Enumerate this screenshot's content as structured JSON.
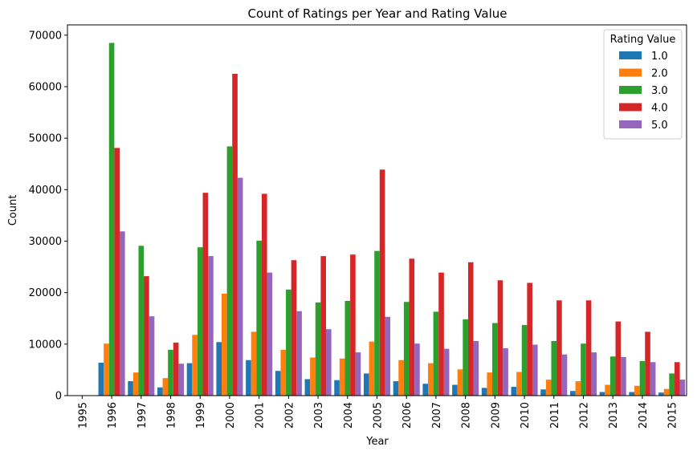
{
  "chart_data": {
    "type": "bar",
    "title": "Count of Ratings per Year and Rating Value",
    "xlabel": "Year",
    "ylabel": "Count",
    "ylim": [
      0,
      72000
    ],
    "yticks": [
      0,
      10000,
      20000,
      30000,
      40000,
      50000,
      60000,
      70000
    ],
    "grid": false,
    "legend": {
      "title": "Rating Value",
      "placement": "top-right"
    },
    "categories": [
      "1995",
      "1996",
      "1997",
      "1998",
      "1999",
      "2000",
      "2001",
      "2002",
      "2003",
      "2004",
      "2005",
      "2006",
      "2007",
      "2008",
      "2009",
      "2010",
      "2011",
      "2012",
      "2013",
      "2014",
      "2015"
    ],
    "series": [
      {
        "name": "1.0",
        "color": "#1f77b4",
        "values": [
          0,
          6400,
          2800,
          1600,
          6300,
          10400,
          6900,
          4800,
          3200,
          3000,
          4300,
          2800,
          2300,
          2100,
          1500,
          1700,
          1200,
          900,
          700,
          700,
          600
        ]
      },
      {
        "name": "2.0",
        "color": "#ff7f0e",
        "values": [
          0,
          10100,
          4500,
          3400,
          11800,
          19800,
          12400,
          8900,
          7400,
          7200,
          10500,
          6900,
          6300,
          5100,
          4500,
          4600,
          3100,
          2800,
          2100,
          1900,
          1300
        ]
      },
      {
        "name": "3.0",
        "color": "#2ca02c",
        "values": [
          0,
          68500,
          29100,
          8900,
          28800,
          48400,
          30100,
          20600,
          18100,
          18400,
          28100,
          18200,
          16300,
          14800,
          14100,
          13700,
          10600,
          10100,
          7600,
          6700,
          4300
        ]
      },
      {
        "name": "4.0",
        "color": "#d62728",
        "values": [
          0,
          48100,
          23200,
          10300,
          39400,
          62500,
          39200,
          26300,
          27100,
          27400,
          43900,
          26600,
          23900,
          25900,
          22400,
          21900,
          18500,
          18500,
          14400,
          12400,
          6500
        ]
      },
      {
        "name": "5.0",
        "color": "#9467bd",
        "values": [
          0,
          31900,
          15400,
          6200,
          27100,
          42300,
          23900,
          16400,
          12900,
          8400,
          15300,
          10100,
          9100,
          10600,
          9200,
          9900,
          8000,
          8400,
          7500,
          6500,
          3100
        ]
      }
    ]
  }
}
